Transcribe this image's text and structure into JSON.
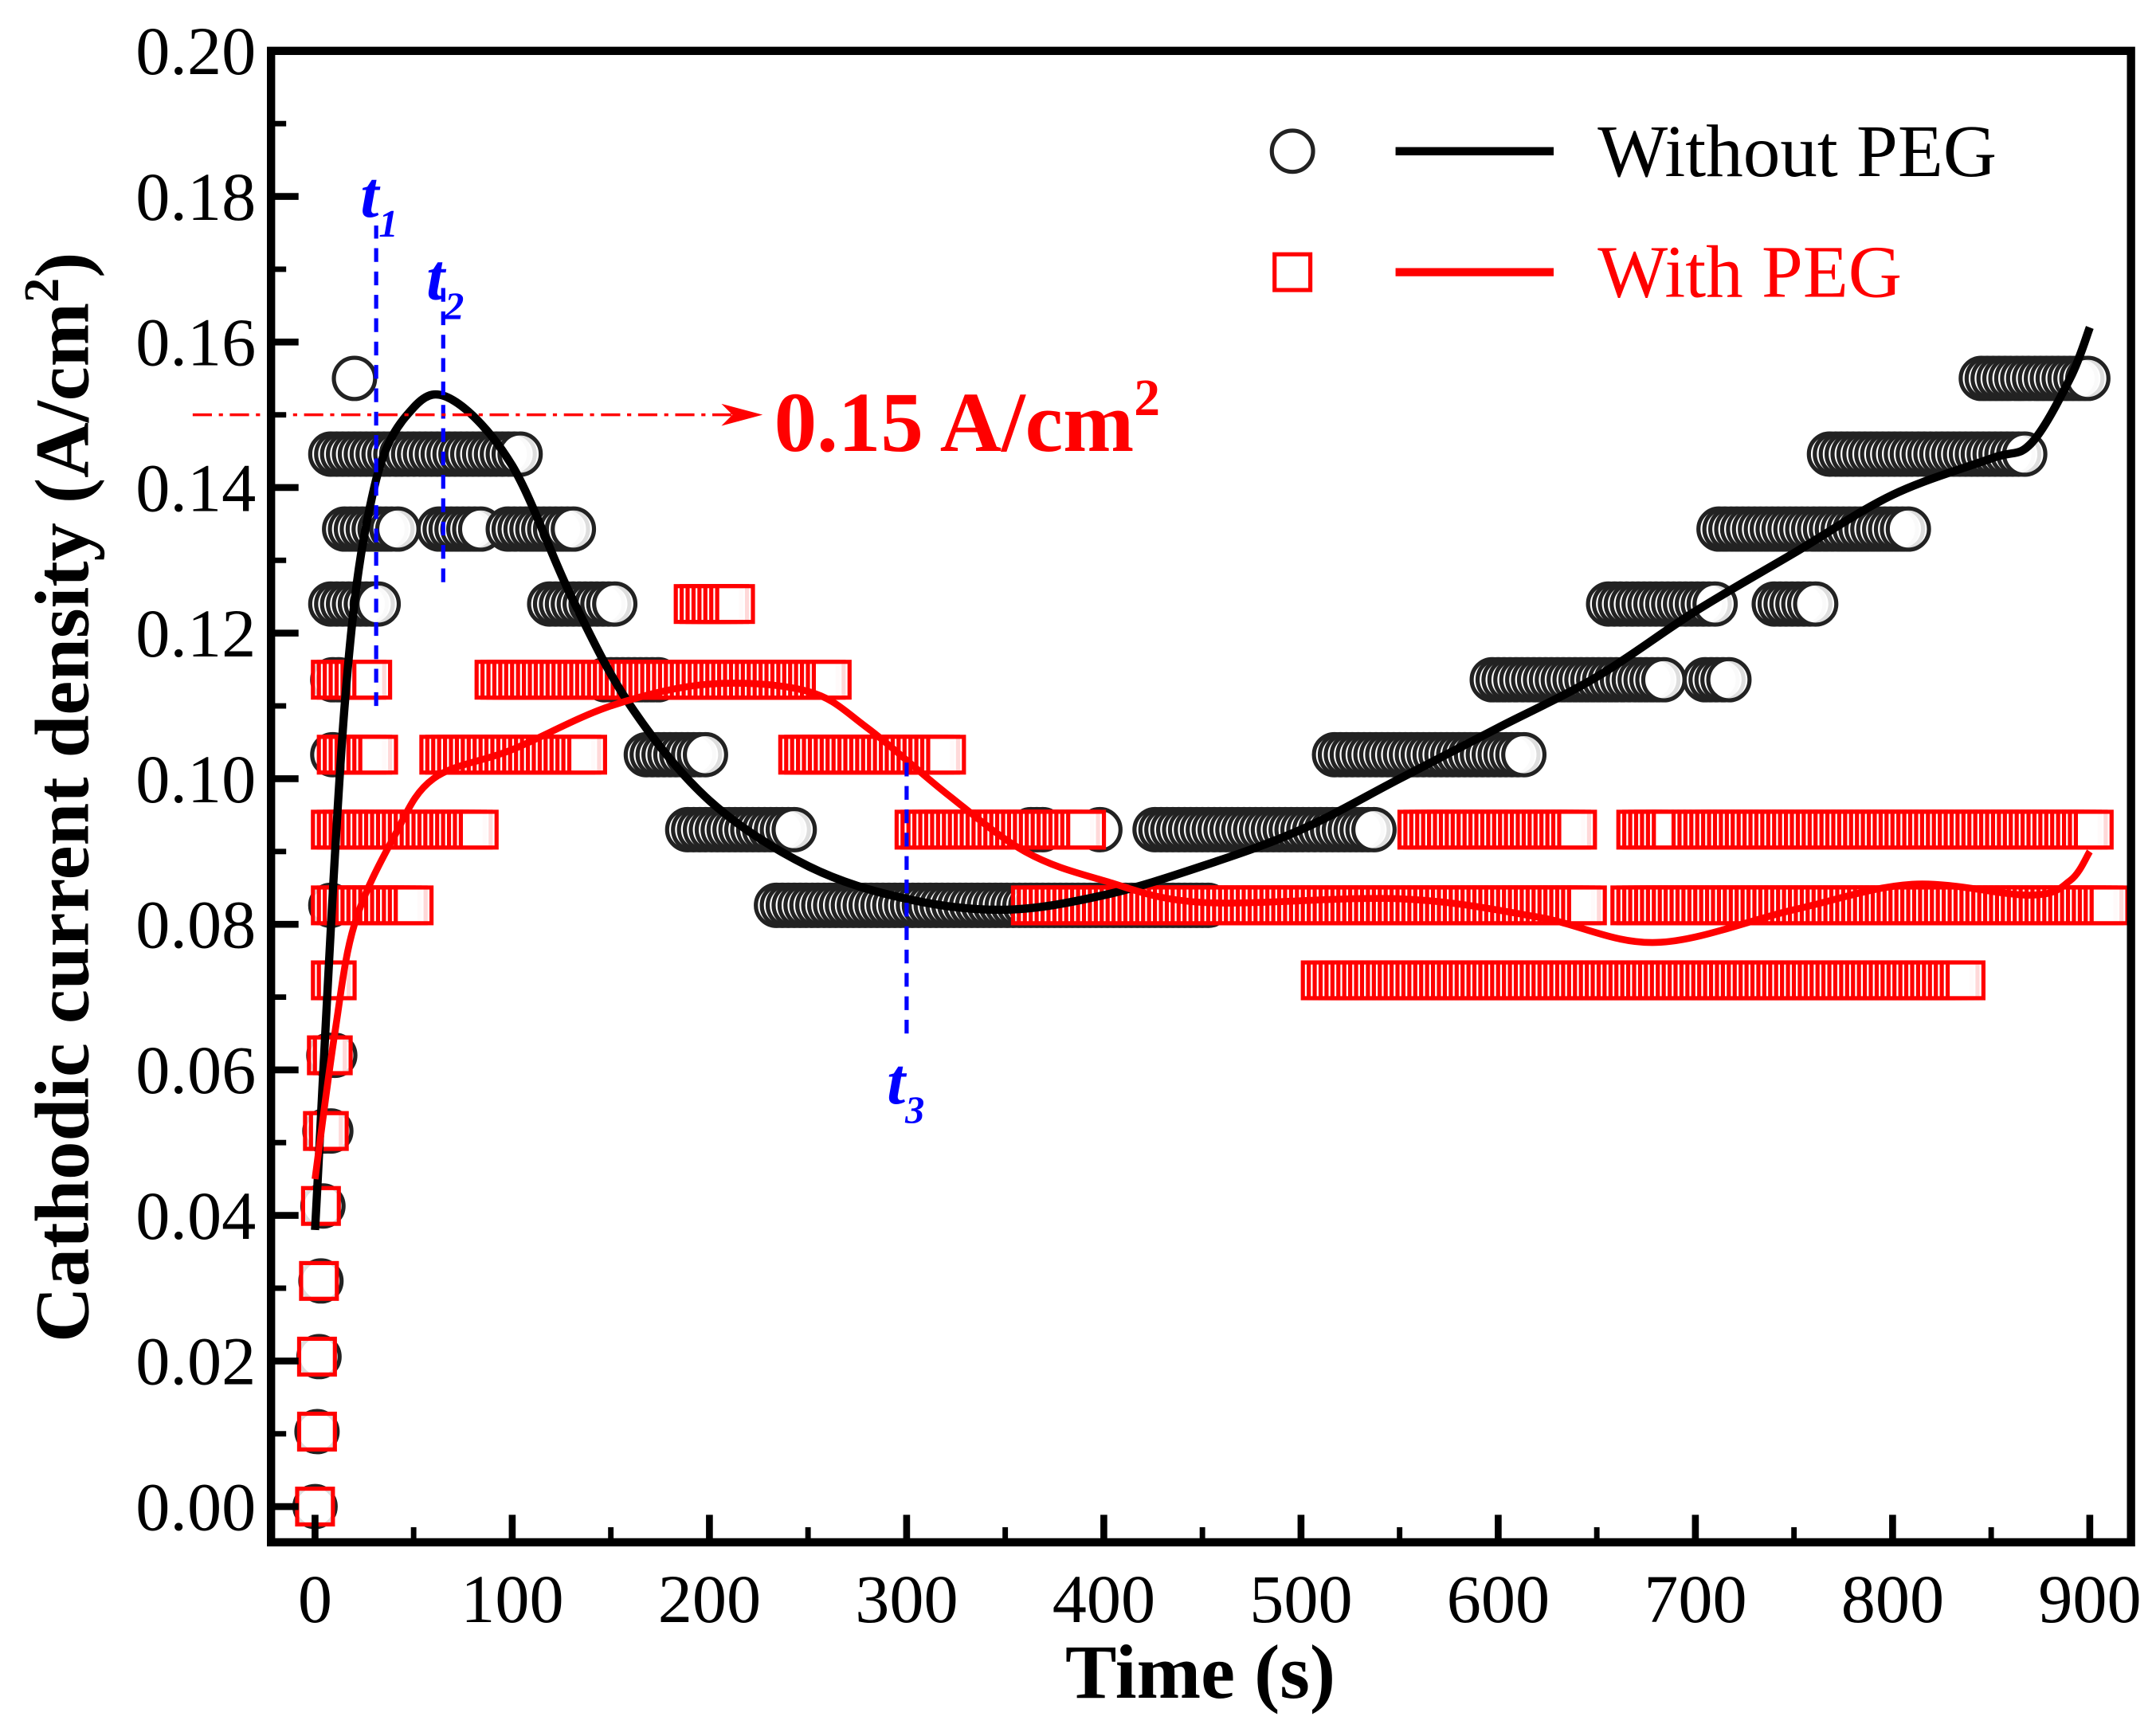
{
  "chart_data": {
    "type": "scatter",
    "title": "",
    "xlabel": "Time (s)",
    "ylabel": "Cathodic current density (A/cm",
    "ylabel_sup": "2",
    "ylabel_close": ")",
    "xlim": [
      -10,
      920
    ],
    "ylim": [
      -0.005,
      0.2
    ],
    "xticks": [
      0,
      100,
      200,
      300,
      400,
      500,
      600,
      700,
      800,
      900
    ],
    "xtick_labels": [
      "0",
      "100",
      "200",
      "300",
      "400",
      "500",
      "600",
      "700",
      "800",
      "900"
    ],
    "yticks": [
      0,
      0.02,
      0.04,
      0.06,
      0.08,
      0.1,
      0.12,
      0.14,
      0.16,
      0.18,
      0.2
    ],
    "ytick_labels": [
      "0.00",
      "0.02",
      "0.04",
      "0.06",
      "0.08",
      "0.10",
      "0.12",
      "0.14",
      "0.16",
      "0.18",
      "0.20"
    ],
    "grid": false,
    "legend_position": "top-right",
    "series": [
      {
        "name": "Without PEG",
        "color": "#000000",
        "marker": "circle",
        "points_note": "clusters: [current density, t_start, t_end]",
        "clusters": [
          [
            0.0,
            0,
            1
          ],
          [
            0.0103,
            1,
            2
          ],
          [
            0.0206,
            2,
            3
          ],
          [
            0.031,
            3,
            4
          ],
          [
            0.0413,
            4,
            6
          ],
          [
            0.0516,
            5,
            8
          ],
          [
            0.062,
            7,
            10
          ],
          [
            0.0826,
            8,
            10
          ],
          [
            0.1033,
            9,
            11
          ],
          [
            0.1136,
            9,
            12
          ],
          [
            0.124,
            8,
            32
          ],
          [
            0.1343,
            15,
            42
          ],
          [
            0.1446,
            8,
            105
          ],
          [
            0.155,
            20,
            21
          ],
          [
            0.1343,
            63,
            84
          ],
          [
            0.1343,
            98,
            133
          ],
          [
            0.124,
            119,
            154
          ],
          [
            0.1136,
            147,
            175
          ],
          [
            0.1033,
            168,
            200
          ],
          [
            0.093,
            189,
            245
          ],
          [
            0.0826,
            234,
            454
          ],
          [
            0.093,
            363,
            370
          ],
          [
            0.093,
            398,
            399
          ],
          [
            0.093,
            426,
            537
          ],
          [
            0.1033,
            517,
            614
          ],
          [
            0.1136,
            597,
            684
          ],
          [
            0.1136,
            705,
            719
          ],
          [
            0.124,
            656,
            712
          ],
          [
            0.124,
            740,
            761
          ],
          [
            0.1343,
            712,
            810
          ],
          [
            0.1446,
            768,
            869
          ],
          [
            0.155,
            845,
            900
          ]
        ],
        "fit": [
          [
            0,
            0.038
          ],
          [
            15,
            0.11
          ],
          [
            30,
            0.14
          ],
          [
            50,
            0.151
          ],
          [
            70,
            0.152
          ],
          [
            100,
            0.143
          ],
          [
            130,
            0.125
          ],
          [
            160,
            0.11
          ],
          [
            200,
            0.097
          ],
          [
            250,
            0.088
          ],
          [
            300,
            0.0835
          ],
          [
            350,
            0.082
          ],
          [
            400,
            0.084
          ],
          [
            450,
            0.088
          ],
          [
            500,
            0.093
          ],
          [
            550,
            0.1
          ],
          [
            600,
            0.107
          ],
          [
            650,
            0.114
          ],
          [
            700,
            0.123
          ],
          [
            750,
            0.131
          ],
          [
            800,
            0.139
          ],
          [
            850,
            0.144
          ],
          [
            870,
            0.146
          ],
          [
            890,
            0.155
          ],
          [
            900,
            0.162
          ]
        ]
      },
      {
        "name": "With PEG",
        "color": "#ff0000",
        "marker": "square",
        "points_note": "clusters: [current density, t_start, t_end]",
        "clusters": [
          [
            0.0,
            0,
            1
          ],
          [
            0.0103,
            1,
            2
          ],
          [
            0.0206,
            1,
            3
          ],
          [
            0.031,
            2,
            4
          ],
          [
            0.0413,
            3,
            5
          ],
          [
            0.0516,
            4,
            7
          ],
          [
            0.062,
            6,
            9
          ],
          [
            0.0723,
            8,
            12
          ],
          [
            0.0826,
            8,
            50
          ],
          [
            0.093,
            8,
            85
          ],
          [
            0.1033,
            11,
            32
          ],
          [
            0.1033,
            63,
            140
          ],
          [
            0.1136,
            8,
            29
          ],
          [
            0.1136,
            91,
            262
          ],
          [
            0.124,
            192,
            213
          ],
          [
            0.1033,
            245,
            321
          ],
          [
            0.093,
            304,
            391
          ],
          [
            0.0826,
            363,
            646
          ],
          [
            0.0723,
            510,
            837
          ],
          [
            0.093,
            559,
            642
          ],
          [
            0.093,
            670,
            688
          ],
          [
            0.093,
            698,
            904
          ],
          [
            0.0826,
            667,
            911
          ]
        ],
        "fit": [
          [
            0,
            0.045
          ],
          [
            10,
            0.065
          ],
          [
            20,
            0.08
          ],
          [
            40,
            0.092
          ],
          [
            60,
            0.1
          ],
          [
            100,
            0.104
          ],
          [
            150,
            0.11
          ],
          [
            200,
            0.113
          ],
          [
            250,
            0.112
          ],
          [
            280,
            0.107
          ],
          [
            320,
            0.098
          ],
          [
            360,
            0.09
          ],
          [
            400,
            0.086
          ],
          [
            450,
            0.083
          ],
          [
            550,
            0.0835
          ],
          [
            620,
            0.081
          ],
          [
            680,
            0.0775
          ],
          [
            750,
            0.082
          ],
          [
            810,
            0.0855
          ],
          [
            870,
            0.084
          ],
          [
            890,
            0.086
          ],
          [
            900,
            0.09
          ]
        ]
      }
    ],
    "annotations": {
      "t1": {
        "label": "t",
        "sub": "1",
        "x": 31,
        "y_range": [
          0.11,
          0.176
        ]
      },
      "t2": {
        "label": "t",
        "sub": "2",
        "x": 65,
        "y_range": [
          0.127,
          0.168
        ]
      },
      "t3": {
        "label": "t",
        "sub": "3",
        "x": 300,
        "y_range": [
          0.065,
          0.103
        ]
      },
      "threshold": {
        "value": 0.15,
        "label": "0.15 A/cm",
        "label_sup": "2",
        "x_end": 227,
        "color": "#ff0000"
      },
      "marker_color": "#0000ff"
    }
  }
}
